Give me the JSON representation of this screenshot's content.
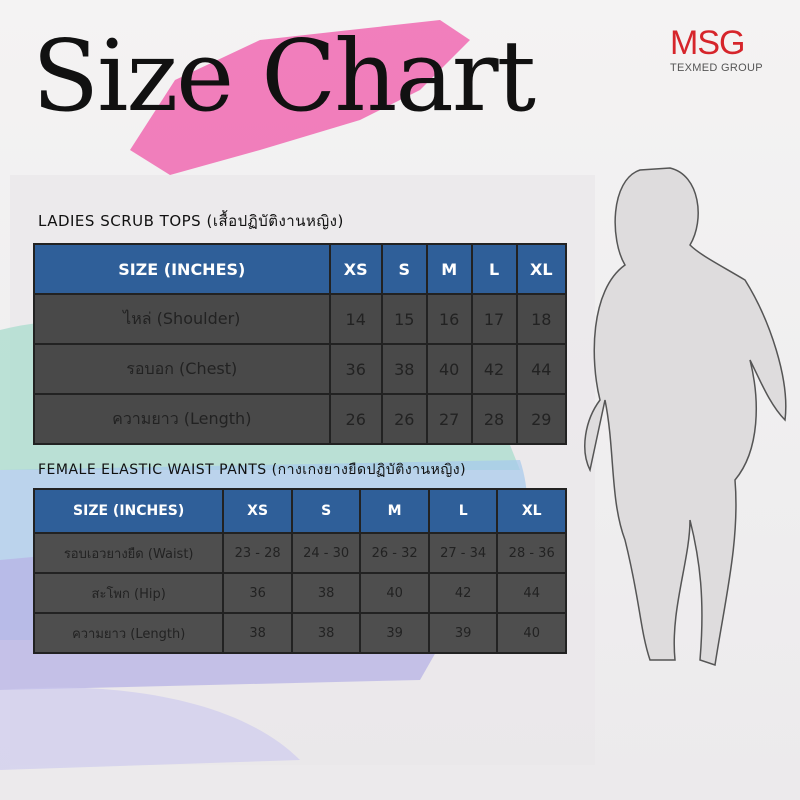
{
  "header": {
    "title": "Size Chart",
    "logo": "MSG",
    "logo_subtitle": "TEXMED GROUP"
  },
  "tops": {
    "heading": "LADIES SCRUB TOPS (เสื้อปฏิบัติงานหญิง)",
    "columns": [
      "SIZE (INCHES)",
      "XS",
      "S",
      "M",
      "L",
      "XL"
    ],
    "rows": [
      [
        "ไหล่ (Shoulder)",
        14,
        15,
        16,
        17,
        18
      ],
      [
        "รอบอก (Chest)",
        36,
        38,
        40,
        42,
        44
      ],
      [
        "ความยาว (Length)",
        26,
        26,
        27,
        28,
        29
      ]
    ]
  },
  "pants": {
    "heading": "FEMALE ELASTIC WAIST PANTS (กางเกงยางยืดปฏิบัติงานหญิง)",
    "columns": [
      "SIZE (INCHES)",
      "XS",
      "S",
      "M",
      "L",
      "XL"
    ],
    "rows": [
      [
        "รอบเอวยางยืด (Waist)",
        "23 - 28",
        "24 - 30",
        "26 - 32",
        "27 - 34",
        "28 - 36"
      ],
      [
        "สะโพก (Hip)",
        36,
        38,
        40,
        42,
        44
      ],
      [
        "ความยาว (Length)",
        38,
        38,
        39,
        39,
        40
      ]
    ]
  }
}
